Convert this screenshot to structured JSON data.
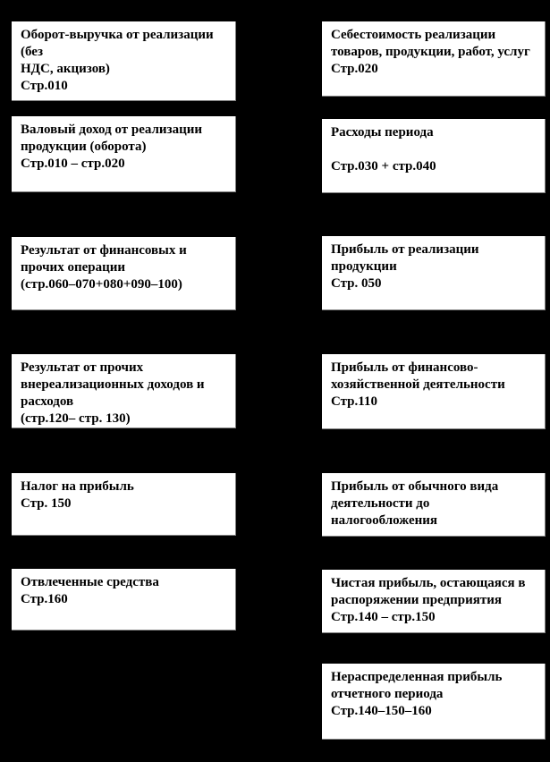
{
  "diagram": {
    "description": "Flowchart of profit formation (Russian P&L statement structure)",
    "background_color": "#000000",
    "box_background_color": "#ffffff",
    "text_color": "#000000",
    "left_column": [
      {
        "title": "Оборот-выручка от реализации (без\nНДС, акцизов)",
        "code": "Стр.010"
      },
      {
        "title": "Валовый доход от реализации\nпродукции (оборота)",
        "code": "Стр.010 – стр.020"
      },
      {
        "title": "Результат от финансовых и\nпрочих операции",
        "code": "(стр.060–070+080+090–100)"
      },
      {
        "title": "Результат от прочих\nвнереализационных доходов и\nрасходов",
        "code": "(стр.120– стр. 130)"
      },
      {
        "title": "Налог на прибыль",
        "code": "Стр. 150"
      },
      {
        "title": "Отвлеченные средства",
        "code": "Стр.160"
      }
    ],
    "right_column": [
      {
        "title": "Себестоимость реализации\nтоваров, продукции, работ, услуг",
        "code": "Стр.020"
      },
      {
        "title": "Расходы периода",
        "code": "Стр.030 + стр.040"
      },
      {
        "title": "Прибыль от реализации\nпродукции",
        "code": "Стр. 050"
      },
      {
        "title": "Прибыль от финансово-\nхозяйственной деятельности",
        "code": "Стр.110"
      },
      {
        "title": "Прибыль от обычного вида\nдеятельности до\nналогообложения",
        "code": ""
      },
      {
        "title": "Чистая прибыль, остающаяся в\nраспоряжении предприятия",
        "code": "Стр.140 – стр.150"
      },
      {
        "title": "Нераспределенная прибыль\nотчетного периода",
        "code": "Стр.140–150–160"
      }
    ]
  }
}
